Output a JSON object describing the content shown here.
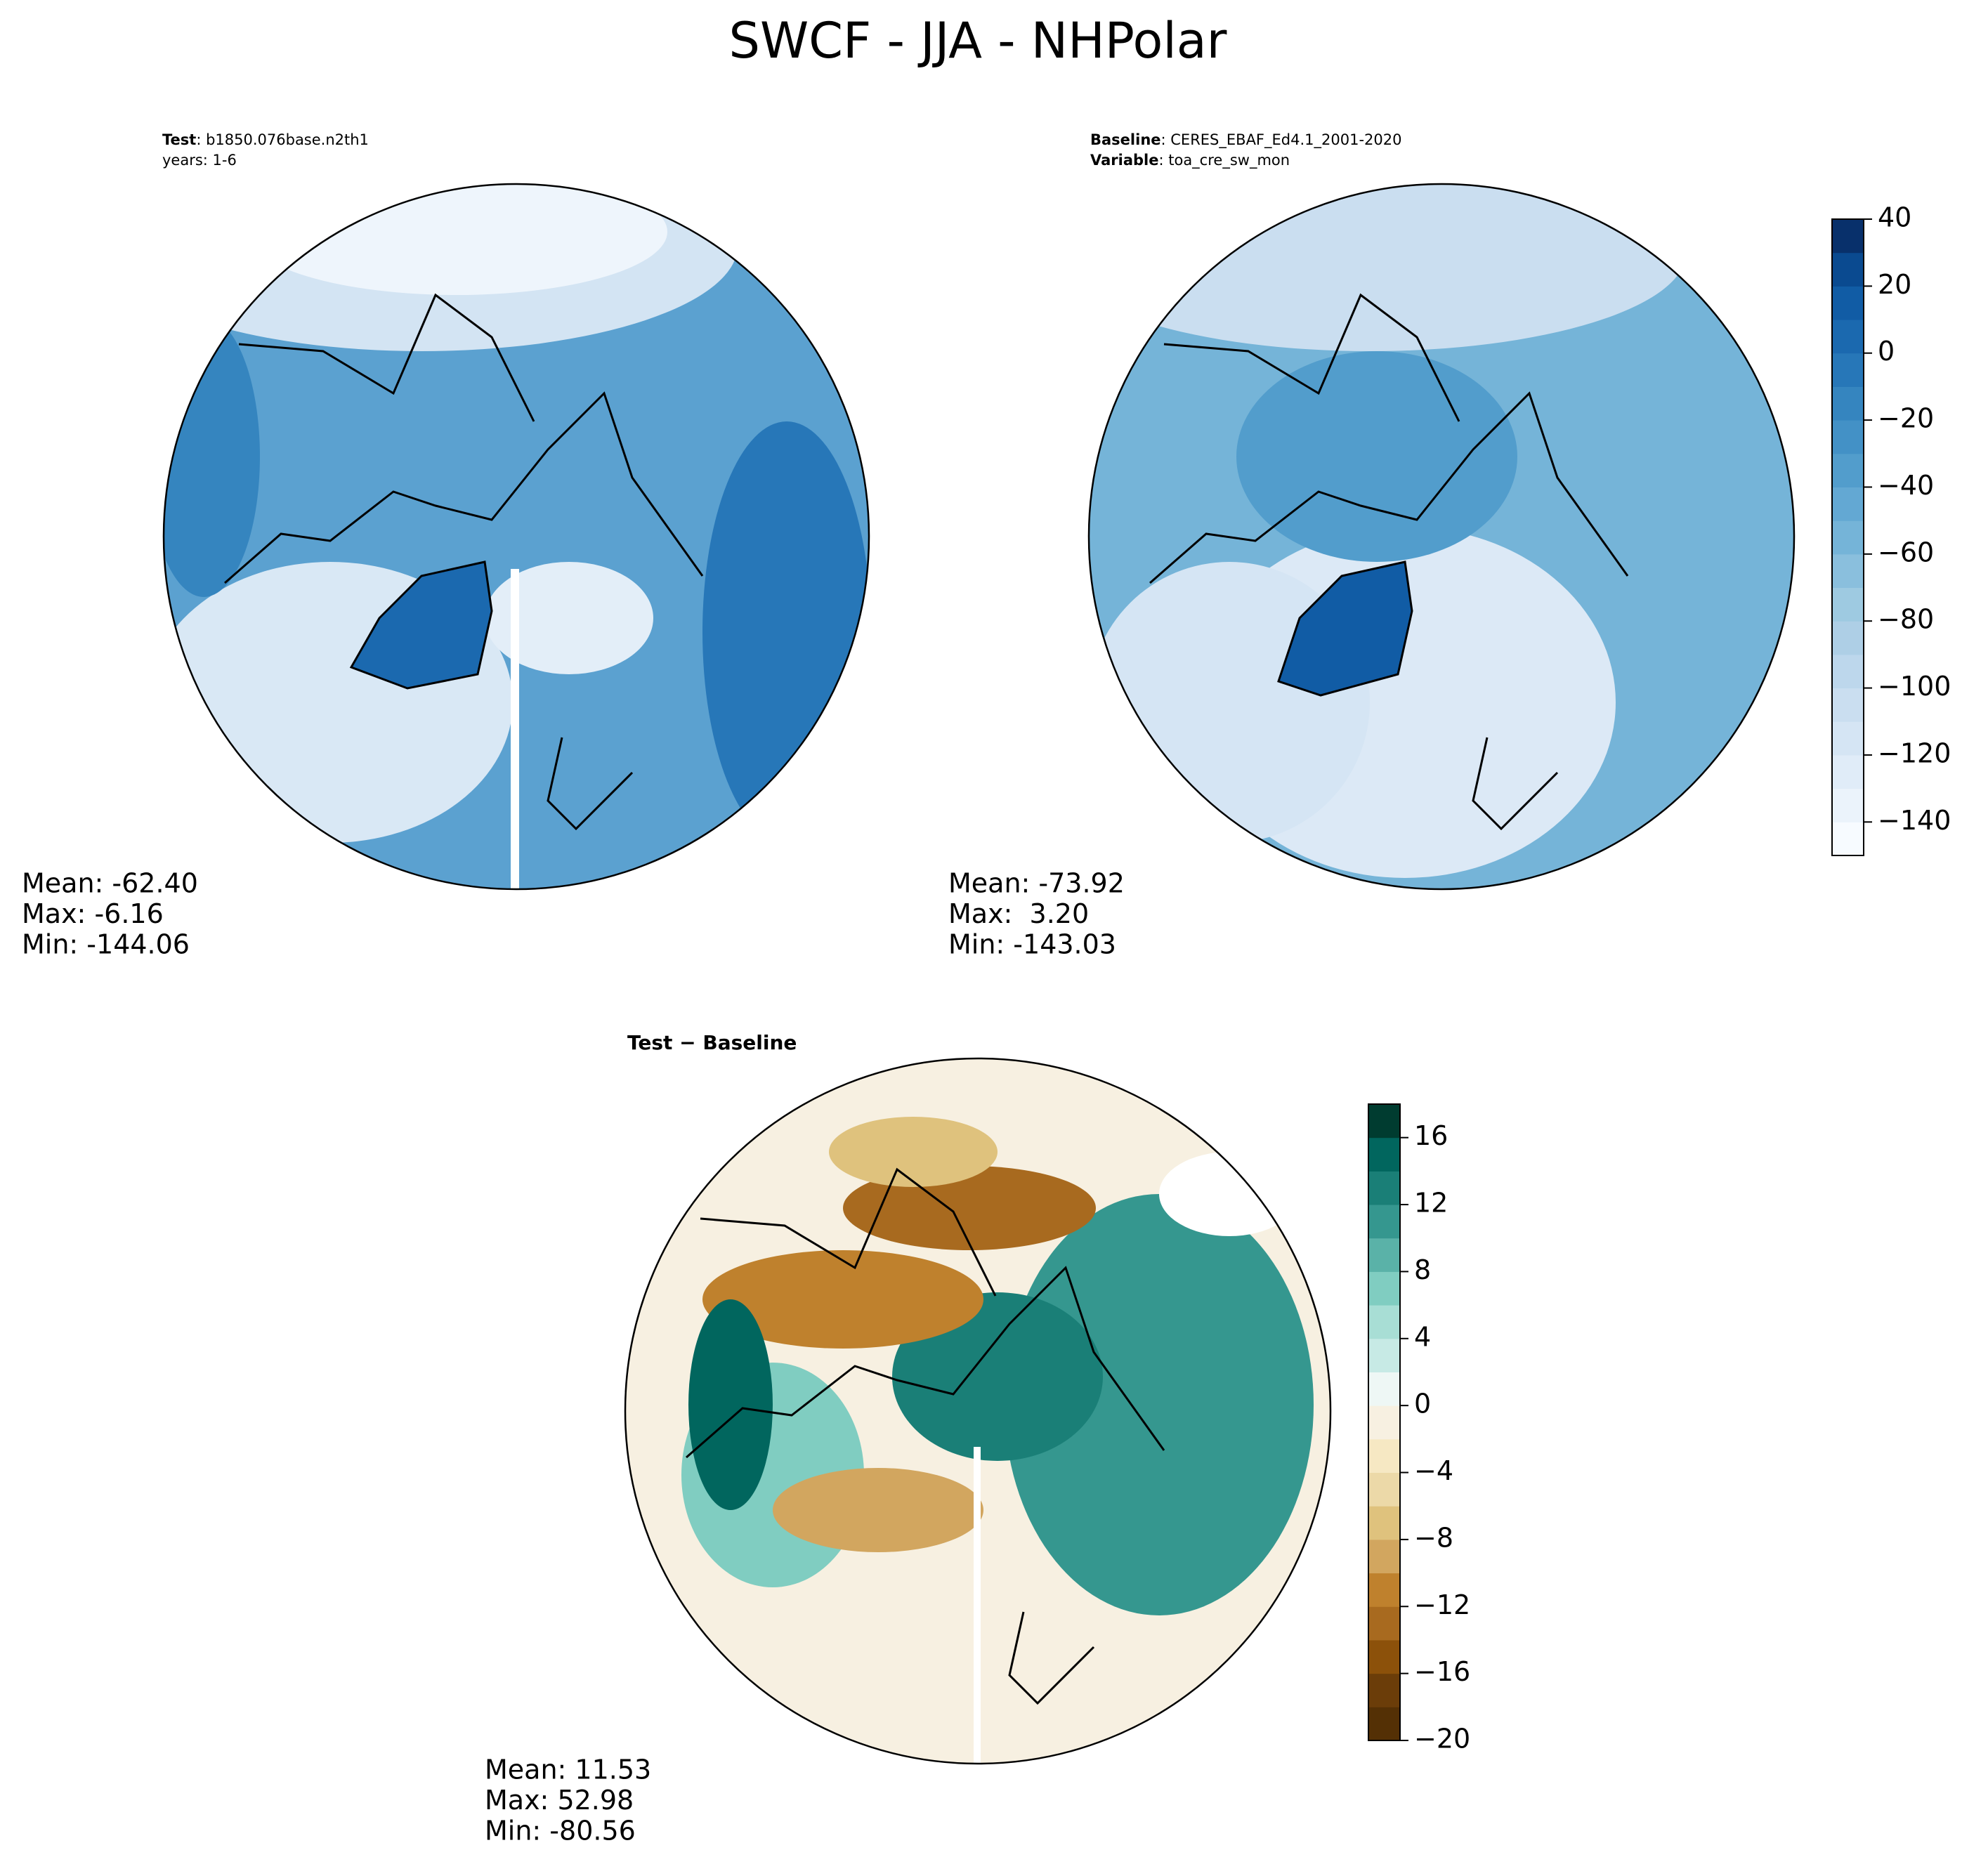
{
  "title": "SWCF - JJA - NHPolar",
  "panels": [
    {
      "header": [
        {
          "label": "Test",
          "text": ": b1850.076base.n2th1"
        },
        {
          "label": "",
          "text": "years: 1-6"
        }
      ],
      "stats": [
        "Mean: -62.40",
        "Max: -6.16",
        "Min: -144.06"
      ]
    },
    {
      "header": [
        {
          "label": "Baseline",
          "text": ": CERES_EBAF_Ed4.1_2001-2020"
        },
        {
          "label": "Variable",
          "text": ": toa_cre_sw_mon"
        }
      ],
      "stats": [
        "Mean: -73.92",
        "Max:  3.20",
        "Min: -143.03"
      ]
    },
    {
      "header": [
        {
          "label": "Test − Baseline",
          "text": ""
        }
      ],
      "stats": [
        "Mean: 11.53",
        "Max: 52.98",
        "Min: -80.56"
      ]
    }
  ],
  "colorbars": [
    {
      "lim": [
        -150,
        40
      ],
      "ticks": [
        {
          "value": -140,
          "label": "−140"
        },
        {
          "value": -120,
          "label": "−120"
        },
        {
          "value": -100,
          "label": "−100"
        },
        {
          "value": -80,
          "label": "−80"
        },
        {
          "value": -60,
          "label": "−60"
        },
        {
          "value": -40,
          "label": "−40"
        },
        {
          "value": -20,
          "label": "−20"
        },
        0,
        20,
        40
      ],
      "colors": [
        "#f7fbff",
        "#ebf3fb",
        "#e0ecf8",
        "#d5e5f4",
        "#cadef0",
        "#bdd7ec",
        "#aecfe6",
        "#9ecae1",
        "#8abfdd",
        "#75b4d8",
        "#63a8d3",
        "#529dcc",
        "#4391c6",
        "#3585bf",
        "#2777b8",
        "#1b69af",
        "#115ca5",
        "#0a4a90",
        "#08306b"
      ]
    },
    {
      "lim": [
        -20,
        18
      ],
      "ticks": [
        {
          "value": -20,
          "label": "−20"
        },
        {
          "value": -16,
          "label": "−16"
        },
        {
          "value": -12,
          "label": "−12"
        },
        {
          "value": -8,
          "label": "−8"
        },
        {
          "value": -4,
          "label": "−4"
        },
        0,
        4,
        8,
        12,
        16
      ],
      "colors": [
        "#543005",
        "#6b3d09",
        "#8c510a",
        "#a86a1f",
        "#bf812d",
        "#d2a65f",
        "#dfc27d",
        "#ecd9a8",
        "#f6e8c3",
        "#f7f0e1",
        "#eef7f5",
        "#c7eae5",
        "#a8ded5",
        "#80cdc1",
        "#5ab2a8",
        "#35978f",
        "#1a7f77",
        "#01665e",
        "#003c30"
      ]
    }
  ]
}
